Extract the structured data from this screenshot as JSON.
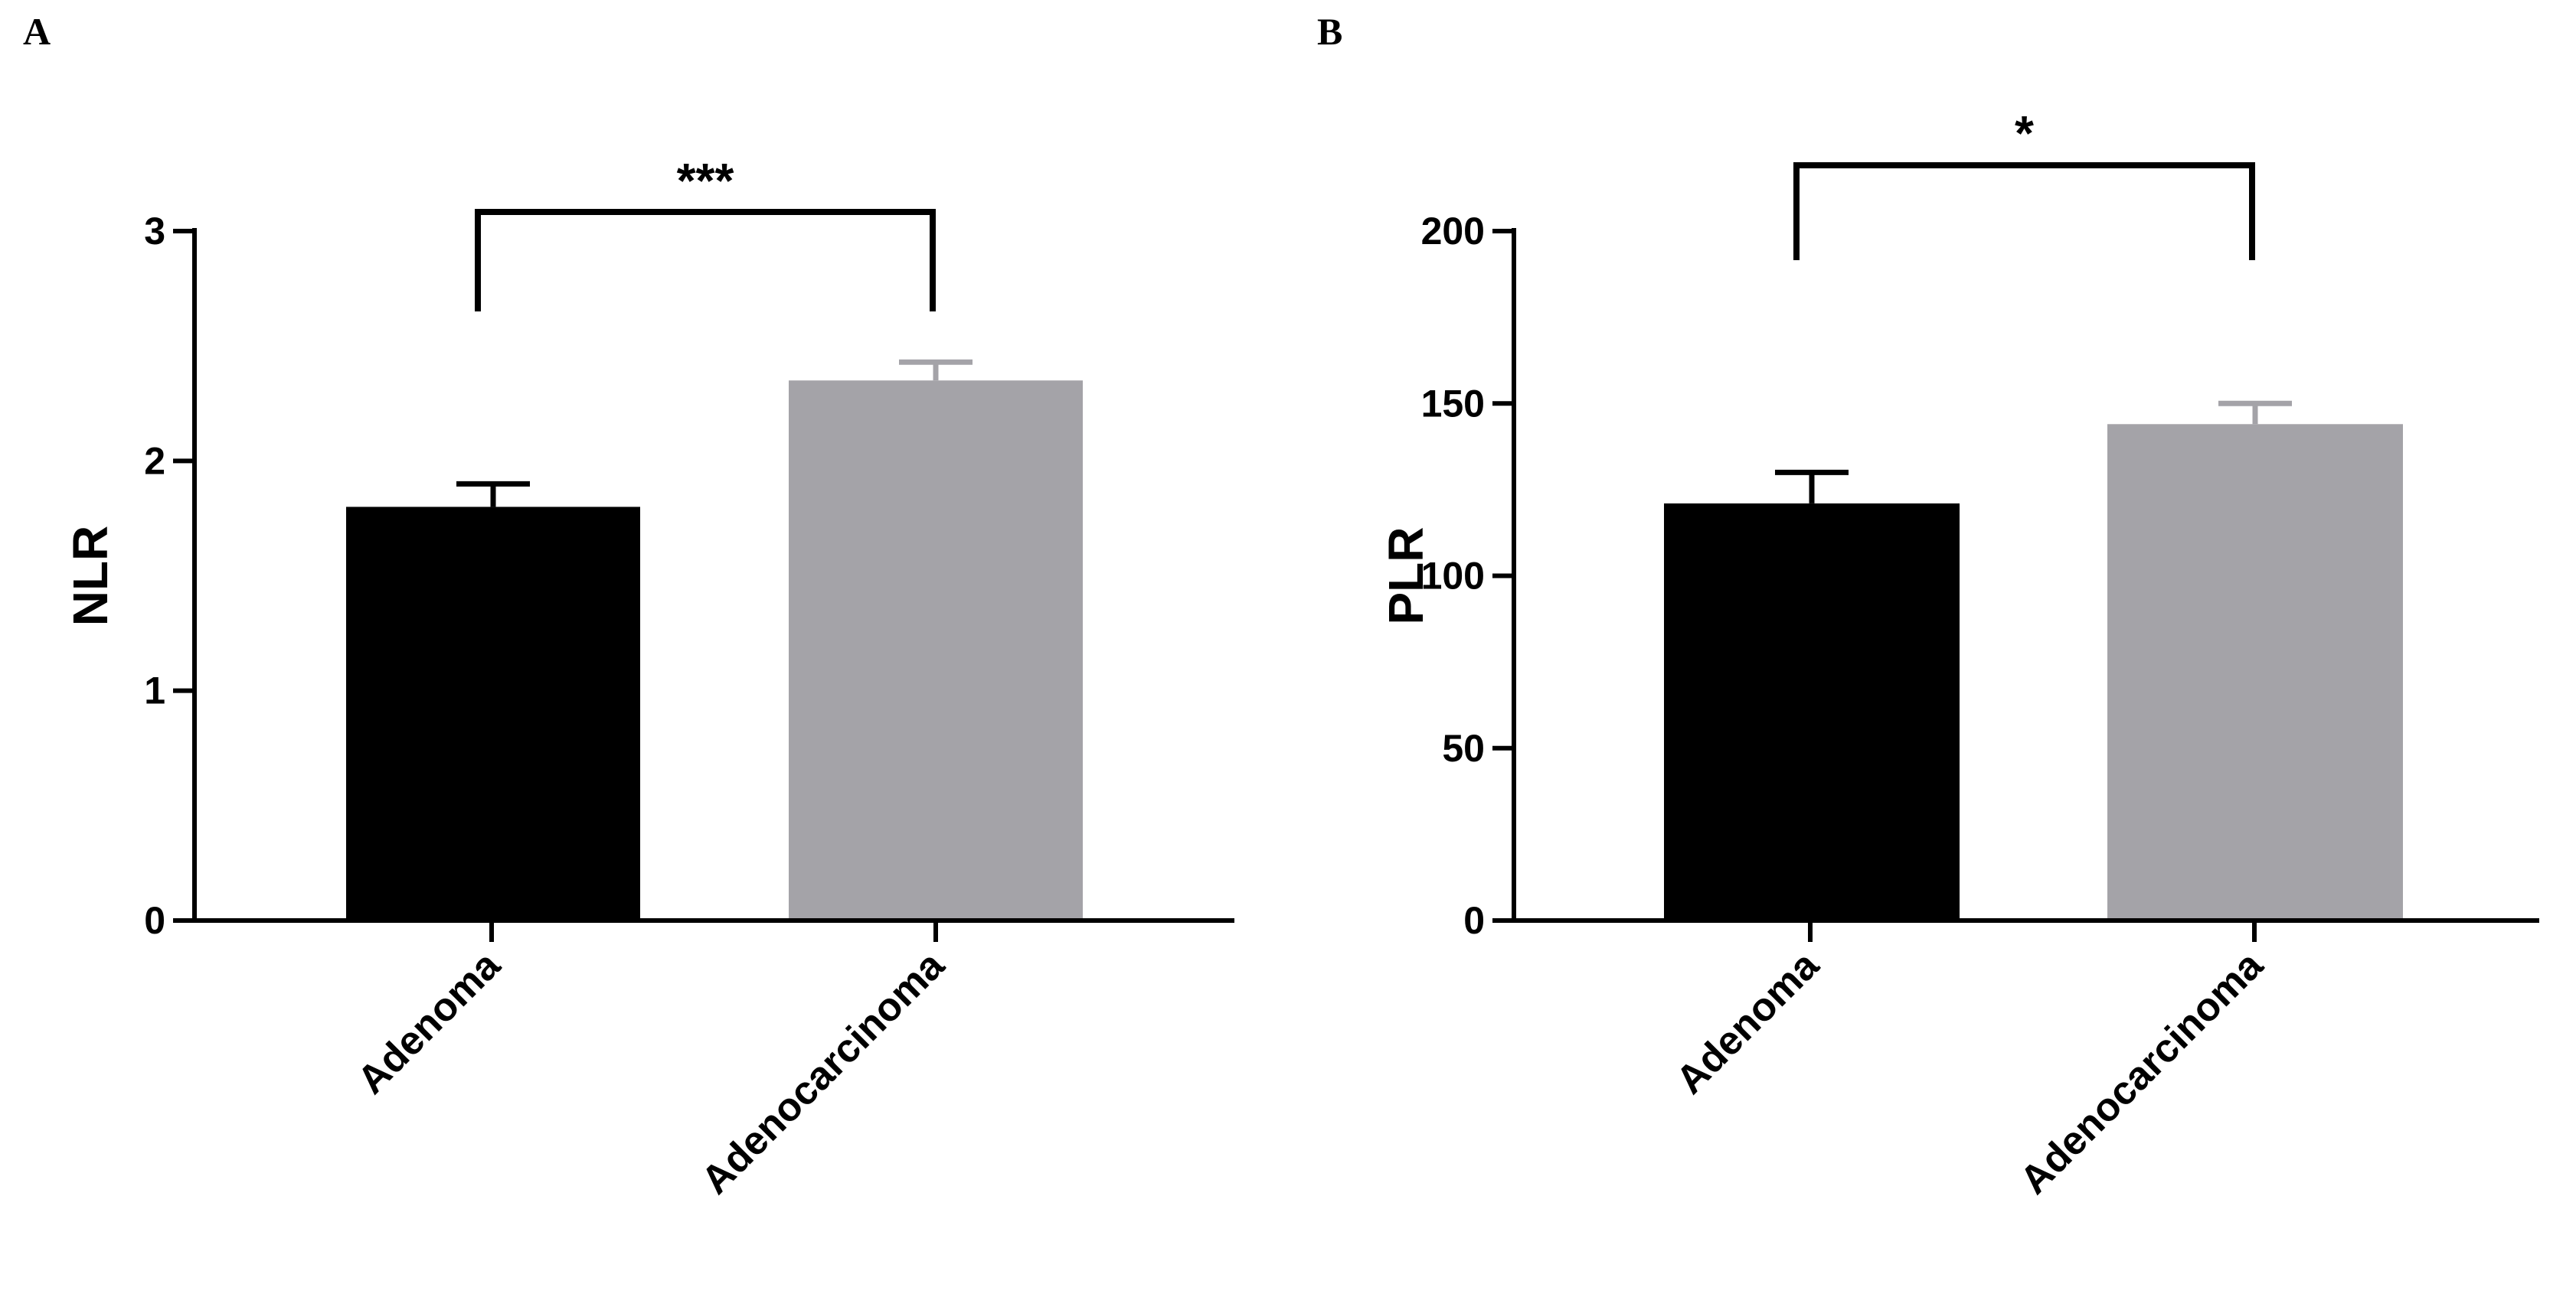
{
  "figure": {
    "panels": [
      "A",
      "B"
    ]
  },
  "colors": {
    "adenoma": "#000000",
    "adenocarcinoma": "#a4a3a8",
    "axis": "#000000"
  },
  "chart_data": [
    {
      "type": "bar",
      "panel": "A",
      "categories": [
        "Adenoma",
        "Adenocarcinoma"
      ],
      "values": [
        1.8,
        2.35
      ],
      "error": [
        0.1,
        0.08
      ],
      "ylabel": "NLR",
      "xlabel": "",
      "ylim": [
        0,
        3
      ],
      "yticks": [
        0,
        1,
        2,
        3
      ],
      "significance": {
        "label": "***",
        "from": 0,
        "to": 1
      },
      "grid": false
    },
    {
      "type": "bar",
      "panel": "B",
      "categories": [
        "Adenoma",
        "Adenocarcinoma"
      ],
      "values": [
        121,
        144
      ],
      "error": [
        9,
        6
      ],
      "ylabel": "PLR",
      "xlabel": "",
      "ylim": [
        0,
        200
      ],
      "yticks": [
        0,
        50,
        100,
        150,
        200
      ],
      "significance": {
        "label": "*",
        "from": 0,
        "to": 1
      },
      "grid": false
    }
  ]
}
